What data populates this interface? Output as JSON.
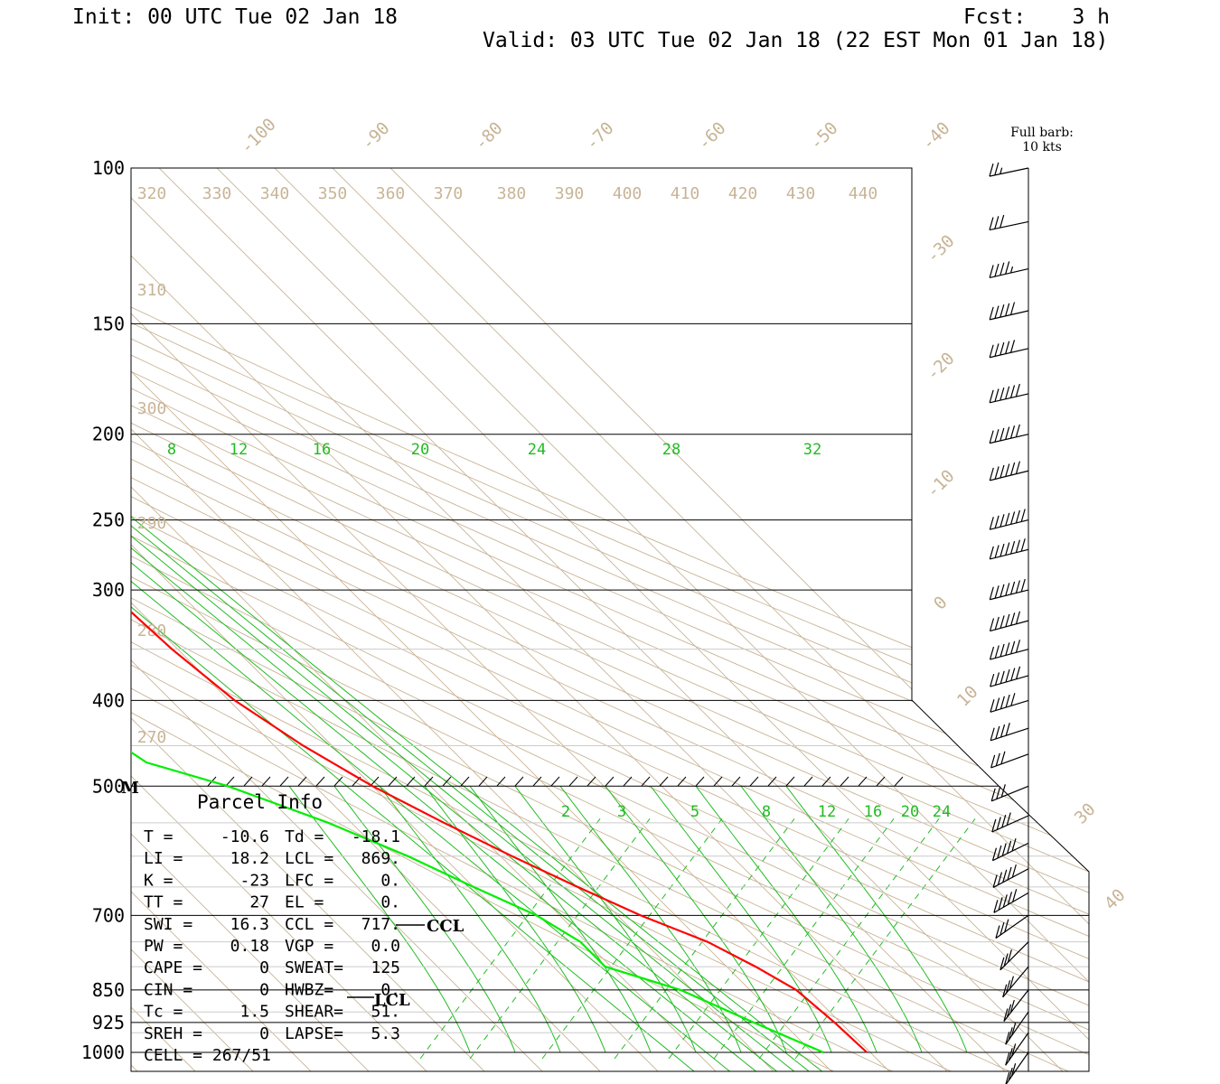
{
  "header": {
    "init": "Init: 00 UTC Tue 02 Jan 18",
    "fcst_label": "Fcst:",
    "fcst_value": "3 h",
    "valid": "Valid: 03 UTC Tue 02 Jan 18 (22 EST Mon 01 Jan 18)"
  },
  "barb_legend": {
    "line1": "Full barb:",
    "line2": "10 kts"
  },
  "level_labels": {
    "ccl": "CCL",
    "lcl": "LCL",
    "m": "M"
  },
  "parcel_info": {
    "title": "Parcel Info",
    "rows": [
      {
        "k1": "T  =",
        "v1": "-10.6",
        "k2": "Td =",
        "v2": "-18.1"
      },
      {
        "k1": "LI =",
        "v1": "18.2",
        "k2": "LCL =",
        "v2": "869."
      },
      {
        "k1": "K  =",
        "v1": "-23",
        "k2": "LFC =",
        "v2": "0."
      },
      {
        "k1": "TT =",
        "v1": "27",
        "k2": "EL  =",
        "v2": "0."
      },
      {
        "k1": "SWI =",
        "v1": "16.3",
        "k2": "CCL =",
        "v2": "717."
      },
      {
        "k1": "PW =",
        "v1": "0.18",
        "k2": "VGP =",
        "v2": "0.0"
      },
      {
        "k1": "CAPE =",
        "v1": "0",
        "k2": "SWEAT=",
        "v2": "125"
      },
      {
        "k1": "CIN =",
        "v1": "0",
        "k2": "HWBZ=",
        "v2": "0."
      },
      {
        "k1": "Tc =",
        "v1": "1.5",
        "k2": "SHEAR=",
        "v2": "51."
      },
      {
        "k1": "SREH =",
        "v1": "0",
        "k2": "LAPSE=",
        "v2": "5.3"
      },
      {
        "k1": "CELL = 267/51",
        "v1": "",
        "k2": "",
        "v2": ""
      }
    ]
  },
  "chart_data": {
    "type": "line",
    "title": "",
    "pressure_ticks": [
      100,
      150,
      200,
      250,
      300,
      400,
      500,
      700,
      850,
      925,
      1000
    ],
    "pressure_tick_labels": [
      "100",
      "150",
      "200",
      "250",
      "300",
      "400",
      "500",
      "700",
      "850",
      "925",
      "1000"
    ],
    "temperature_ticks": [
      -100,
      -90,
      -80,
      -70,
      -60,
      -50,
      -40,
      -30,
      -20,
      -10,
      0,
      10,
      30,
      40
    ],
    "temperature_tick_labels": [
      "-100",
      "-90",
      "-80",
      "-70",
      "-60",
      "-50",
      "-40",
      "-30",
      "-20",
      "-10",
      "0",
      "10",
      "30",
      "40"
    ],
    "theta_ticks": [
      270,
      280,
      290,
      300,
      310,
      320,
      330,
      340,
      350,
      360,
      370,
      380,
      390,
      400,
      410,
      420,
      430,
      440
    ],
    "theta_tick_labels": [
      "270",
      "280",
      "290",
      "300",
      "310",
      "320",
      "330",
      "340",
      "350",
      "360",
      "370",
      "380",
      "390",
      "400",
      "410",
      "420",
      "430",
      "440"
    ],
    "upper_mixing_ratio_ticks": [
      "8",
      "12",
      "16",
      "20",
      "24",
      "28",
      "32"
    ],
    "lower_mixing_ratio_ticks": [
      "2",
      "3",
      "5",
      "8",
      "12",
      "16",
      "20",
      "24"
    ],
    "series": [
      {
        "variable": "temperature",
        "color": "#ff0000",
        "points": [
          [
            100,
            -46
          ],
          [
            120,
            -50
          ],
          [
            150,
            -54
          ],
          [
            180,
            -57
          ],
          [
            200,
            -59
          ],
          [
            250,
            -61
          ],
          [
            300,
            -62
          ],
          [
            350,
            -61
          ],
          [
            400,
            -59
          ],
          [
            450,
            -55
          ],
          [
            500,
            -50
          ],
          [
            550,
            -44
          ],
          [
            600,
            -38
          ],
          [
            650,
            -32
          ],
          [
            700,
            -26
          ],
          [
            750,
            -19
          ],
          [
            800,
            -15
          ],
          [
            850,
            -12
          ],
          [
            925,
            -11
          ],
          [
            1000,
            -10.6
          ]
        ]
      },
      {
        "variable": "dewpoint",
        "color": "#00ee00",
        "points": [
          [
            100,
            -60
          ],
          [
            120,
            -67
          ],
          [
            150,
            -75
          ],
          [
            180,
            -84
          ],
          [
            200,
            -85
          ],
          [
            220,
            -80
          ],
          [
            250,
            -80
          ],
          [
            300,
            -83
          ],
          [
            350,
            -84
          ],
          [
            400,
            -85
          ],
          [
            430,
            -88
          ],
          [
            470,
            -85
          ],
          [
            500,
            -75
          ],
          [
            550,
            -64
          ],
          [
            600,
            -56
          ],
          [
            650,
            -50
          ],
          [
            700,
            -44
          ],
          [
            750,
            -41
          ],
          [
            800,
            -41
          ],
          [
            850,
            -32
          ],
          [
            925,
            -25
          ],
          [
            1000,
            -18.1
          ]
        ]
      }
    ],
    "wind_barbs": [
      {
        "p": 100,
        "dir": 282,
        "kt": 25
      },
      {
        "p": 115,
        "dir": 282,
        "kt": 30
      },
      {
        "p": 130,
        "dir": 283,
        "kt": 45
      },
      {
        "p": 145,
        "dir": 283,
        "kt": 50
      },
      {
        "p": 160,
        "dir": 283,
        "kt": 50
      },
      {
        "p": 180,
        "dir": 283,
        "kt": 60
      },
      {
        "p": 200,
        "dir": 283,
        "kt": 60
      },
      {
        "p": 220,
        "dir": 284,
        "kt": 60
      },
      {
        "p": 250,
        "dir": 284,
        "kt": 70
      },
      {
        "p": 270,
        "dir": 284,
        "kt": 70
      },
      {
        "p": 300,
        "dir": 284,
        "kt": 70
      },
      {
        "p": 325,
        "dir": 285,
        "kt": 60
      },
      {
        "p": 350,
        "dir": 285,
        "kt": 60
      },
      {
        "p": 375,
        "dir": 286,
        "kt": 60
      },
      {
        "p": 400,
        "dir": 287,
        "kt": 50
      },
      {
        "p": 430,
        "dir": 288,
        "kt": 40
      },
      {
        "p": 460,
        "dir": 290,
        "kt": 30
      },
      {
        "p": 500,
        "dir": 292,
        "kt": 30
      },
      {
        "p": 540,
        "dir": 294,
        "kt": 40
      },
      {
        "p": 580,
        "dir": 296,
        "kt": 50
      },
      {
        "p": 620,
        "dir": 298,
        "kt": 50
      },
      {
        "p": 660,
        "dir": 300,
        "kt": 50
      },
      {
        "p": 700,
        "dir": 305,
        "kt": 30
      },
      {
        "p": 750,
        "dir": 315,
        "kt": 30
      },
      {
        "p": 800,
        "dir": 320,
        "kt": 30
      },
      {
        "p": 850,
        "dir": 322,
        "kt": 30
      },
      {
        "p": 900,
        "dir": 325,
        "kt": 30
      },
      {
        "p": 950,
        "dir": 325,
        "kt": 30
      },
      {
        "p": 1000,
        "dir": 325,
        "kt": 30
      }
    ]
  }
}
